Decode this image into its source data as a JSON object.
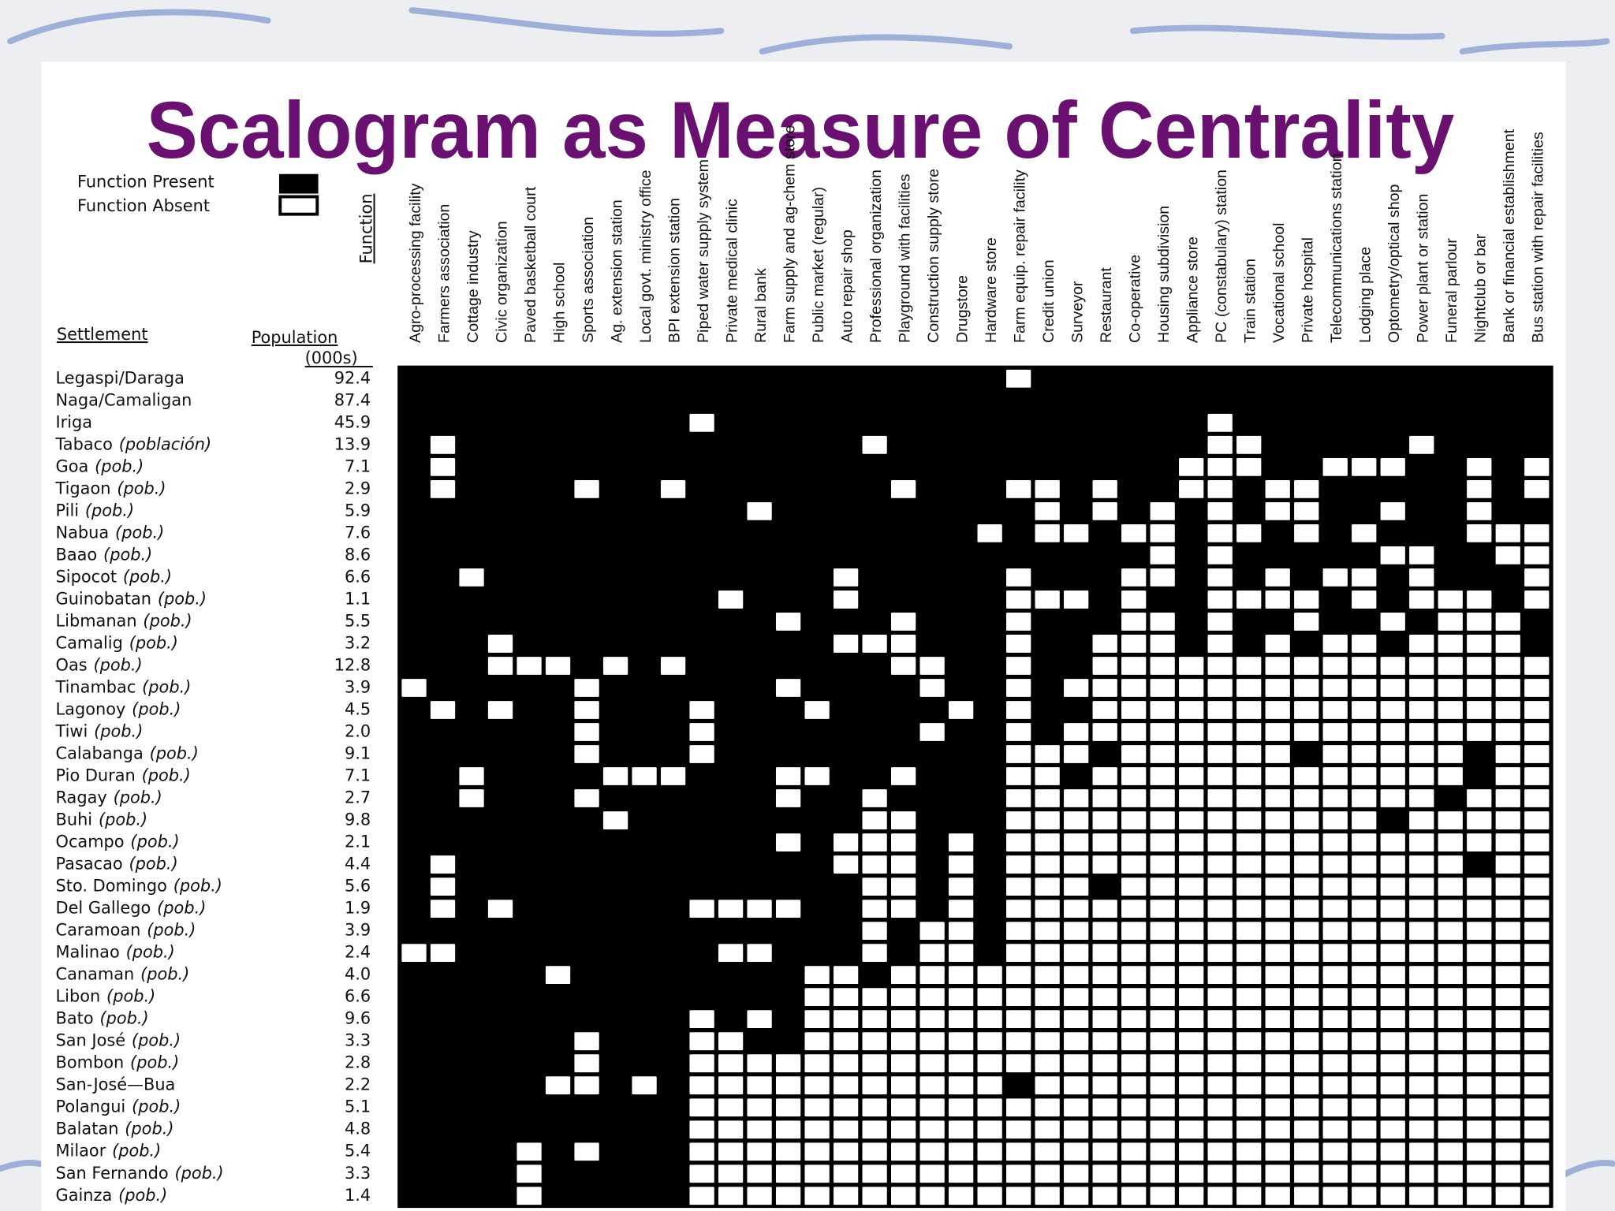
{
  "title": "Scalogram as Measure of Centrality",
  "legend": {
    "present": "Function Present",
    "absent": "Function Absent"
  },
  "function_label": "Function",
  "settlement_header": "Settlement",
  "population_header": "Population",
  "population_unit": "(000s)",
  "functions": [
    "Agro-processing facility",
    "Farmers association",
    "Cottage industry",
    "Civic organization",
    "Paved basketball court",
    "High school",
    "Sports association",
    "Ag. extension station",
    "Local govt. ministry office",
    "BPI extension station",
    "Piped water supply system",
    "Private medical clinic",
    "Rural bank",
    "Farm supply and ag-chem store",
    "Public market (regular)",
    "Auto repair shop",
    "Professional organization",
    "Playground with facilities",
    "Construction supply store",
    "Drugstore",
    "Hardware store",
    "Farm equip. repair facility",
    "Credit union",
    "Surveyor",
    "Restaurant",
    "Co-operative",
    "Housing subdivision",
    "Appliance store",
    "PC (constabulary) station",
    "Train station",
    "Vocational school",
    "Private hospital",
    "Telecommunications station",
    "Lodging place",
    "Optometry/optical shop",
    "Power plant or station",
    "Funeral parlour",
    "Nightclub or bar",
    "Bank or financial establishment",
    "Bus station with repair facilities"
  ],
  "settlements": [
    {
      "name": "Legaspi/Daraga",
      "population": "92.4",
      "presence": "1111111111111111111110111111111111111111"
    },
    {
      "name": "Naga/Camaligan",
      "population": "87.4",
      "presence": "1111111111111111111111111111111111111111"
    },
    {
      "name": "Iriga",
      "population": "45.9",
      "presence": "1111111111011111111111111111011111111111"
    },
    {
      "name": "Tabaco",
      "qualifier": "(población)",
      "population": "13.9",
      "presence": "1011111111111111011111111111001111101111"
    },
    {
      "name": "Goa",
      "qualifier": "(pob.)",
      "population": "7.1",
      "presence": "1011111111111111111111111110001100011010"
    },
    {
      "name": "Tigaon",
      "qualifier": "(pob.)",
      "population": "2.9",
      "presence": "1011110110111111101110010110010011111010"
    },
    {
      "name": "Pili",
      "qualifier": "(pob.)",
      "population": "5.9",
      "presence": "1111111111110111111111010101010011011011"
    },
    {
      "name": "Nabua",
      "qualifier": "(pob.)",
      "population": "7.6",
      "presence": "1111111111111111111101001001001010111000"
    },
    {
      "name": "Baao",
      "qualifier": "(pob.)",
      "population": "8.6",
      "presence": "1111111111111111111111111101011111001100"
    },
    {
      "name": "Sipocot",
      "qualifier": "(pob.)",
      "population": "6.6",
      "presence": "1101111111111110111110111001010100101110"
    },
    {
      "name": "Guinobatan",
      "qualifier": "(pob.)",
      "population": "1.1",
      "presence": "1111111111101110111110001011000010100010"
    },
    {
      "name": "Libmanan",
      "qualifier": "(pob.)",
      "population": "5.5",
      "presence": "1111111111111011101110111001011011010001"
    },
    {
      "name": "Camalig",
      "qualifier": "(pob.)",
      "population": "3.2",
      "presence": "1110111111111110001110110001010100100001"
    },
    {
      "name": "Oas",
      "qualifier": "(pob.)",
      "population": "12.8",
      "presence": "1110001010111111100110110000000000000000"
    },
    {
      "name": "Tinambac",
      "qualifier": "(pob.)",
      "population": "3.9",
      "presence": "0111110111111011110110100000000000000000"
    },
    {
      "name": "Lagonoy",
      "qualifier": "(pob.)",
      "population": "4.5",
      "presence": "1010110111011101111010110000000000000000"
    },
    {
      "name": "Tiwi",
      "qualifier": "(pob.)",
      "population": "2.0",
      "presence": "1111110111011111110110100000000000000000"
    },
    {
      "name": "Calabanga",
      "qualifier": "(pob.)",
      "population": "9.1",
      "presence": "1111110111011111111110001000000100000100"
    },
    {
      "name": "Pio Duran",
      "qualifier": "(pob.)",
      "population": "7.1",
      "presence": "1101111000111001101110010000000000000100"
    },
    {
      "name": "Ragay",
      "qualifier": "(pob.)",
      "population": "2.7",
      "presence": "1101110111111011011110000000000000001000"
    },
    {
      "name": "Buhi",
      "qualifier": "(pob.)",
      "population": "9.8",
      "presence": "1111111011111111001110000000000000100000"
    },
    {
      "name": "Ocampo",
      "qualifier": "(pob.)",
      "population": "2.1",
      "presence": "1111111111111010001010000000000000000000"
    },
    {
      "name": "Pasacao",
      "qualifier": "(pob.)",
      "population": "4.4",
      "presence": "1011111111111110001010000000000000000100"
    },
    {
      "name": "Sto. Domingo",
      "qualifier": "(pob.)",
      "population": "5.6",
      "presence": "1011111111111111001010001000000000000000"
    },
    {
      "name": "Del Gallego",
      "qualifier": "(pob.)",
      "population": "1.9",
      "presence": "1010111111000011001010000000000000000000"
    },
    {
      "name": "Caramoan",
      "qualifier": "(pob.)",
      "population": "3.9",
      "presence": "1111111111111111010010000000000000000000"
    },
    {
      "name": "Malinao",
      "qualifier": "(pob.)",
      "population": "2.4",
      "presence": "0011111111100111010010000000000000000000"
    },
    {
      "name": "Canaman",
      "qualifier": "(pob.)",
      "population": "4.0",
      "presence": "1111101111111100100000000000000000000000"
    },
    {
      "name": "Libon",
      "qualifier": "(pob.)",
      "population": "6.6",
      "presence": "1111111111111100000000000000000000000000"
    },
    {
      "name": "Bato",
      "qualifier": "(pob.)",
      "population": "9.6",
      "presence": "1111111111010100000000000000000000000000"
    },
    {
      "name": "San José",
      "qualifier": "(pob.)",
      "population": "3.3",
      "presence": "1111110111001100000000000000000000000000"
    },
    {
      "name": "Bombon",
      "qualifier": "(pob.)",
      "population": "2.8",
      "presence": "1111110111000000000000000000000000000000"
    },
    {
      "name": "San-José—Bua",
      "population": "2.2",
      "presence": "1111100101000000000001000000000000000000"
    },
    {
      "name": "Polangui",
      "qualifier": "(pob.)",
      "population": "5.1",
      "presence": "1111111111000000000000000000000000000000"
    },
    {
      "name": "Balatan",
      "qualifier": "(pob.)",
      "population": "4.8",
      "presence": "1111111111000000000000000000000000000000"
    },
    {
      "name": "Milaor",
      "qualifier": "(pob.)",
      "population": "5.4",
      "presence": "1111010111000000000000000000000000000000"
    },
    {
      "name": "San Fernando",
      "qualifier": "(pob.)",
      "population": "3.3",
      "presence": "1111011111000000000000000000000000000000"
    },
    {
      "name": "Gainza",
      "qualifier": "(pob.)",
      "population": "1.4",
      "presence": "1111011111000000000000000000000000000000"
    }
  ]
}
